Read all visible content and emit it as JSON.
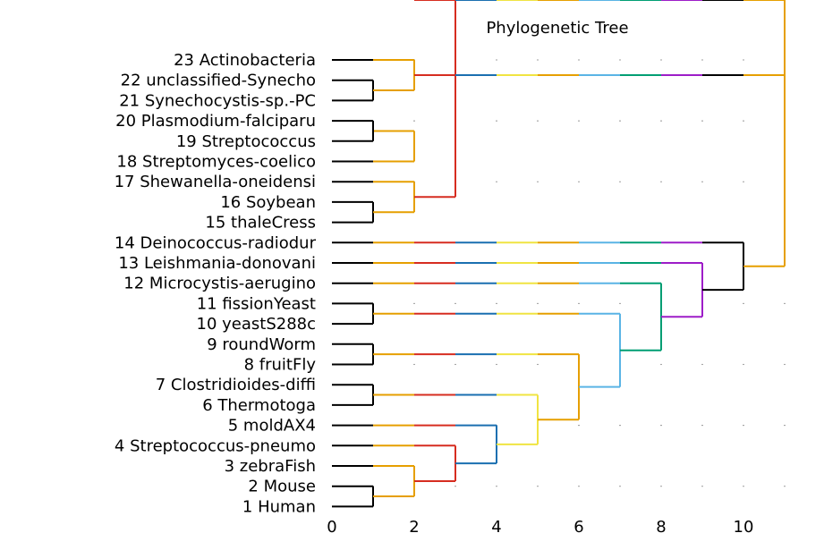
{
  "chart_data": {
    "type": "dendrogram",
    "title": "Phylogenetic Tree",
    "xlabel": "",
    "ylabel": "",
    "xlim": [
      0,
      11
    ],
    "x_ticks": [
      "0",
      "2",
      "4",
      "6",
      "8",
      "10"
    ],
    "x_tick_values": [
      0,
      2,
      4,
      6,
      8,
      10
    ],
    "grid": "dotted, sparse",
    "leaves": [
      "1 Human",
      "2 Mouse",
      "3 zebraFish",
      "4 Streptococcus-pneumo",
      "5 moldAX4",
      "6 Thermotoga",
      "7 Clostridioides-diffi",
      "8 fruitFly",
      "9 roundWorm",
      "10 yeastS288c",
      "11 fissionYeast",
      "12 Microcystis-aerugino",
      "13 Leishmania-donovani",
      "14 Deinococcus-radiodur",
      "15 thaleCress",
      "16 Soybean",
      "17 Shewanella-oneidensi",
      "18 Streptomyces-coelico",
      "19 Streptococcus",
      "20 Plasmodium-falciparu",
      "21 Synechocystis-sp.-PC",
      "22 unclassified-Synecho",
      "23 Actinobacteria"
    ],
    "merges": [
      {
        "id": "n1",
        "a": "1 Human",
        "b": "2 Mouse",
        "height": 1
      },
      {
        "id": "n2",
        "a": "3 zebraFish",
        "b": "n1",
        "height": 2
      },
      {
        "id": "n3",
        "a": "4 Streptococcus-pneumo",
        "b": "n2",
        "height": 3
      },
      {
        "id": "n4",
        "a": "5 moldAX4",
        "b": "n3",
        "height": 4
      },
      {
        "id": "n5",
        "a": "6 Thermotoga",
        "b": "7 Clostridioides-diffi",
        "height": 1
      },
      {
        "id": "n6",
        "a": "n5",
        "b": "n4",
        "height": 5
      },
      {
        "id": "n7",
        "a": "8 fruitFly",
        "b": "9 roundWorm",
        "height": 1
      },
      {
        "id": "n8",
        "a": "n7",
        "b": "n6",
        "height": 6
      },
      {
        "id": "n9",
        "a": "10 yeastS288c",
        "b": "11 fissionYeast",
        "height": 1
      },
      {
        "id": "n10",
        "a": "n9",
        "b": "n8",
        "height": 7
      },
      {
        "id": "n11",
        "a": "12 Microcystis-aerugino",
        "b": "n10",
        "height": 8
      },
      {
        "id": "n12",
        "a": "13 Leishmania-donovani",
        "b": "n11",
        "height": 9
      },
      {
        "id": "n13",
        "a": "14 Deinococcus-radiodur",
        "b": "n12",
        "height": 10
      },
      {
        "id": "n14",
        "a": "15 thaleCress",
        "b": "16 Soybean",
        "height": 1
      },
      {
        "id": "n15",
        "a": "17 Shewanella-oneidensi",
        "b": "n14",
        "height": 2
      },
      {
        "id": "n16",
        "a": "18 Streptomyces-coelico",
        "b": "n17",
        "height": 2
      },
      {
        "id": "n17",
        "a": "19 Streptococcus",
        "b": "20 Plasmodium-falciparu",
        "height": 1
      },
      {
        "id": "n18",
        "a": "n15",
        "b": "n16",
        "height": 3
      },
      {
        "id": "n19",
        "a": "21 Synechocystis-sp.-PC",
        "b": "22 unclassified-Synecho",
        "height": 1
      },
      {
        "id": "n20",
        "a": "23 Actinobacteria",
        "b": "n19",
        "height": 2
      },
      {
        "id": "n21",
        "a": "n18",
        "b": "n20",
        "height": 11
      },
      {
        "id": "root",
        "a": "n13",
        "b": "n21",
        "height": 11
      }
    ],
    "level_colors": [
      "#000000",
      "#e69f00",
      "#d62d20",
      "#1a6fb0",
      "#f0e442",
      "#e69f00",
      "#5ab4e5",
      "#009e73",
      "#9d1dc8"
    ],
    "colors": {
      "black": "#000000",
      "orange": "#e69f00",
      "red": "#d62d20",
      "blue": "#1a6fb0",
      "yellow": "#f0e442",
      "skyblue": "#5ab4e5",
      "green": "#009e73",
      "purple": "#9d1dc8"
    }
  }
}
